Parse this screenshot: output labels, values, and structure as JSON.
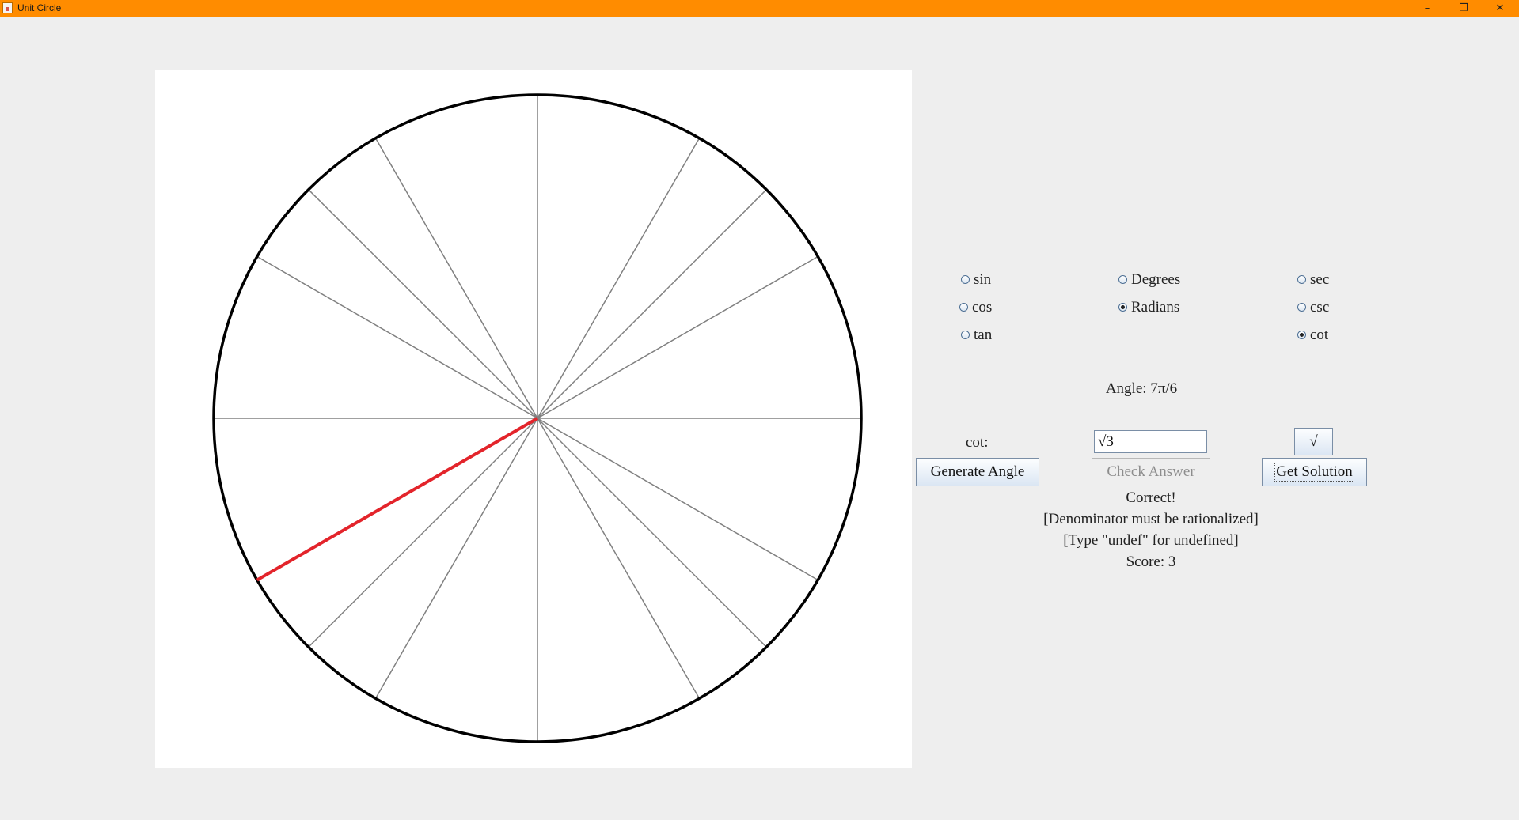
{
  "window": {
    "title": "Unit Circle",
    "controls": {
      "minimize": "–",
      "maximize": "❐",
      "close": "✕"
    }
  },
  "colors": {
    "titlebar": "#ff8c00",
    "highlight_ray": "#e3242b",
    "spoke": "#808080",
    "circle": "#000000"
  },
  "unit_circle": {
    "spoke_angles_deg": [
      0,
      30,
      45,
      60,
      90,
      120,
      135,
      150,
      180,
      210,
      225,
      240,
      270,
      300,
      315,
      330
    ],
    "highlight_angle_deg": 210
  },
  "functions_left": [
    {
      "label": "sin",
      "checked": false
    },
    {
      "label": "cos",
      "checked": false
    },
    {
      "label": "tan",
      "checked": false
    }
  ],
  "units": [
    {
      "label": "Degrees",
      "checked": false
    },
    {
      "label": "Radians",
      "checked": true
    }
  ],
  "functions_right": [
    {
      "label": "sec",
      "checked": false
    },
    {
      "label": "csc",
      "checked": false
    },
    {
      "label": "cot",
      "checked": true
    }
  ],
  "angle_text": "Angle: 7π/6",
  "answer": {
    "label": "cot:",
    "value": "√3",
    "sqrt_button": "√"
  },
  "buttons": {
    "generate": "Generate Angle",
    "check": "Check Answer",
    "solution": "Get Solution"
  },
  "feedback": {
    "result": "Correct!",
    "note1": "[Denominator must be rationalized]",
    "note2": "[Type \"undef\" for undefined]",
    "score": "Score: 3"
  }
}
